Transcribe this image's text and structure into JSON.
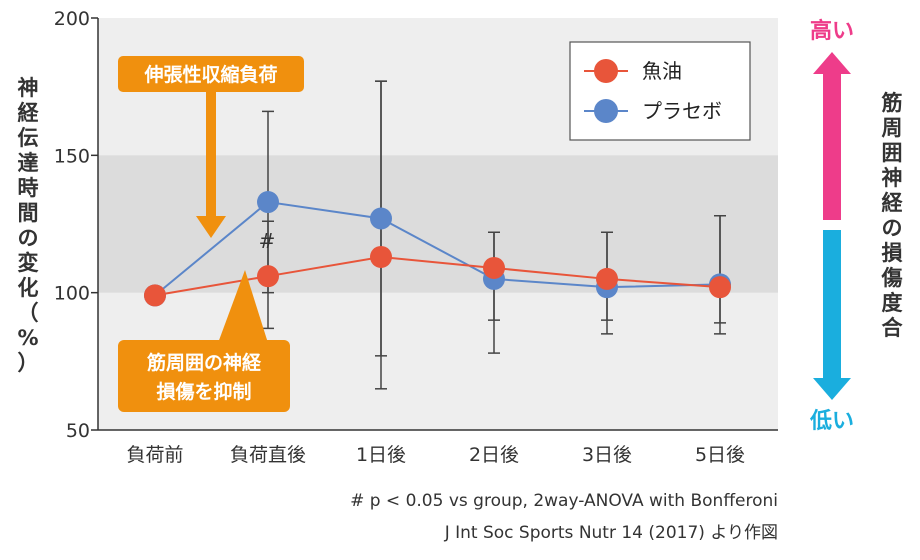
{
  "chart_data": {
    "type": "line",
    "categories": [
      "負荷前",
      "負荷直後",
      "1日後",
      "2日後",
      "3日後",
      "5日後"
    ],
    "ylim": [
      50,
      200
    ],
    "yticks": [
      50,
      100,
      150,
      200
    ],
    "ylabel": "神経伝達時間の変化（%）",
    "shaded_band": [
      100,
      150
    ],
    "grid": false,
    "legend_position": "top-right",
    "series": [
      {
        "name": "魚油",
        "color": "#e8553a",
        "values": [
          99,
          106,
          113,
          109,
          105,
          102
        ],
        "err_low": [
          null,
          87,
          65,
          78,
          85,
          85
        ],
        "err_high": [
          null,
          126,
          177,
          122,
          122,
          128
        ]
      },
      {
        "name": "プラセボ",
        "color": "#5b86c9",
        "values": [
          99,
          133,
          127,
          105,
          102,
          103
        ],
        "err_low": [
          null,
          100,
          77,
          90,
          90,
          89
        ],
        "err_high": [
          null,
          166,
          177,
          122,
          122,
          128
        ]
      }
    ],
    "annotations": {
      "significance_mark": "#",
      "callout_top": "伸張性収縮負荷",
      "callout_bottom_line1": "筋周囲の神経",
      "callout_bottom_line2": "損傷を抑制",
      "right_label": "筋周囲神経の損傷度合",
      "high_label": "高い",
      "low_label": "低い"
    },
    "footnote1": "# p < 0.05 vs group, 2way-ANOVA with Bonfferoni",
    "footnote2": "J Int Soc Sports Nutr 14 (2017) より作図"
  },
  "colors": {
    "fish_oil": "#e8553a",
    "placebo": "#5b86c9",
    "callout": "#f0900e",
    "high": "#ee3c8a",
    "low": "#1aaede",
    "band": "#dddddd",
    "plot_bg": "#eeeeee"
  }
}
